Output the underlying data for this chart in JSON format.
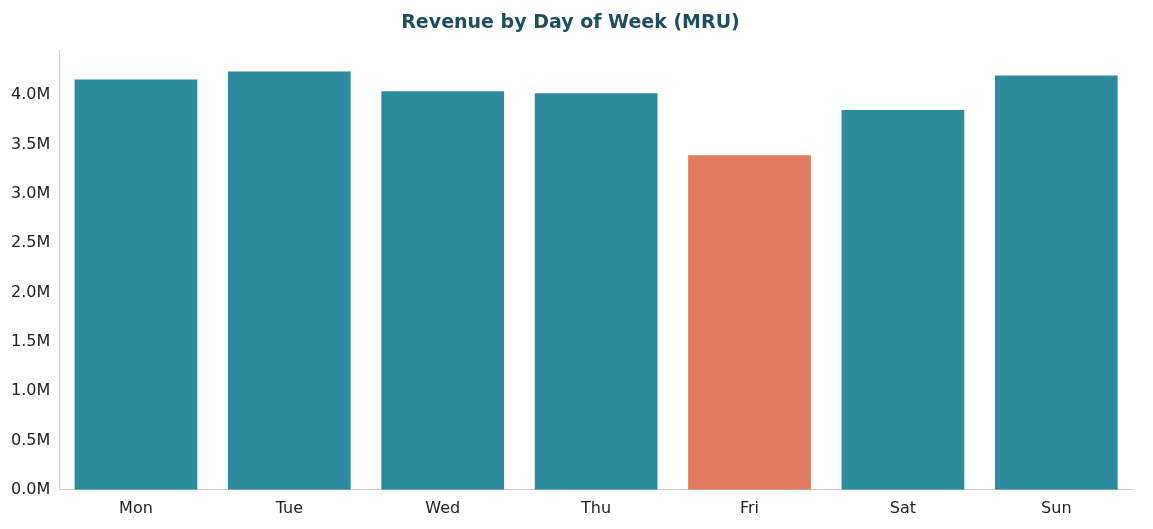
{
  "chart_data": {
    "type": "bar",
    "title": "Revenue by Day of Week (MRU)",
    "categories": [
      "Mon",
      "Tue",
      "Wed",
      "Thu",
      "Fri",
      "Sat",
      "Sun"
    ],
    "values": [
      4.16,
      4.24,
      4.04,
      4.02,
      3.39,
      3.85,
      4.2
    ],
    "colors": [
      "#2e8b9e",
      "#2e8b9e",
      "#2e8b9e",
      "#2e8b9e",
      "#e07b5f",
      "#2e8b9e",
      "#2e8b9e"
    ],
    "ylim": [
      0,
      4.45
    ],
    "yticks": [
      {
        "value": 0,
        "label": "0.0M"
      },
      {
        "value": 0.5,
        "label": "0.5M"
      },
      {
        "value": 1,
        "label": "1.0M"
      },
      {
        "value": 1.5,
        "label": "1.5M"
      },
      {
        "value": 2,
        "label": "2.0M"
      },
      {
        "value": 2.5,
        "label": "2.5M"
      },
      {
        "value": 3,
        "label": "3.0M"
      },
      {
        "value": 3.5,
        "label": "3.5M"
      },
      {
        "value": 4,
        "label": "4.0M"
      }
    ],
    "grid": false,
    "legend": false
  }
}
